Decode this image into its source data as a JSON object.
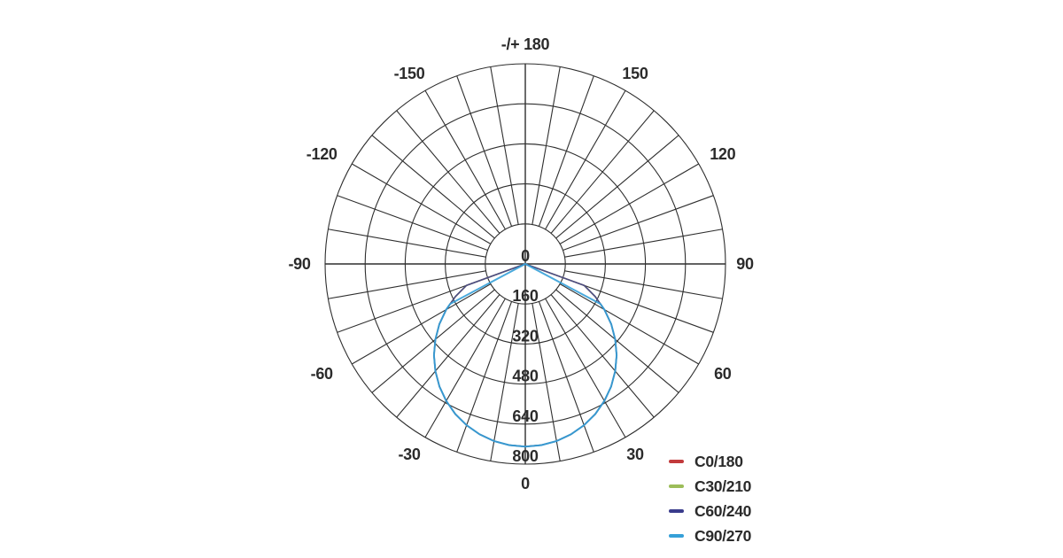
{
  "chart_data": {
    "type": "line",
    "subtype": "polar-photometric",
    "title": "",
    "angle_axis": {
      "unit": "degrees",
      "zero_position": "bottom",
      "minor_spoke_step_deg": 10,
      "labeled_step_deg": 30,
      "ticks": [
        {
          "deg": 0,
          "label": "0"
        },
        {
          "deg": 30,
          "label": "30"
        },
        {
          "deg": 60,
          "label": "60"
        },
        {
          "deg": 90,
          "label": "90"
        },
        {
          "deg": 120,
          "label": "120"
        },
        {
          "deg": 150,
          "label": "150"
        },
        {
          "deg": 180,
          "label": "-/+ 180"
        },
        {
          "deg": -150,
          "label": "-150"
        },
        {
          "deg": -120,
          "label": "-120"
        },
        {
          "deg": -90,
          "label": "-90"
        },
        {
          "deg": -60,
          "label": "-60"
        },
        {
          "deg": -30,
          "label": "-30"
        }
      ]
    },
    "radial_axis": {
      "min": 0,
      "max": 800,
      "ring_step": 160,
      "ticks": [
        {
          "value": 0,
          "label": "0"
        },
        {
          "value": 160,
          "label": "160"
        },
        {
          "value": 320,
          "label": "320"
        },
        {
          "value": 480,
          "label": "480"
        },
        {
          "value": 640,
          "label": "640"
        },
        {
          "value": 800,
          "label": "800"
        }
      ]
    },
    "grid": {
      "visible": true,
      "color": "#2e2e2e",
      "ring_count": 5,
      "spoke_step_deg": 10
    },
    "series": [
      {
        "name": "C0/180",
        "color": "#c23a3c",
        "points": [
          [
            -90,
            0
          ],
          [
            -70,
            250
          ],
          [
            -65,
            308
          ],
          [
            -60,
            365
          ],
          [
            -55,
            419
          ],
          [
            -50,
            469
          ],
          [
            -45,
            516
          ],
          [
            -40,
            559
          ],
          [
            -35,
            598
          ],
          [
            -30,
            632
          ],
          [
            -25,
            662
          ],
          [
            -20,
            686
          ],
          [
            -15,
            705
          ],
          [
            -10,
            719
          ],
          [
            -5,
            727
          ],
          [
            0,
            730
          ],
          [
            5,
            727
          ],
          [
            10,
            719
          ],
          [
            15,
            705
          ],
          [
            20,
            686
          ],
          [
            25,
            662
          ],
          [
            30,
            632
          ],
          [
            35,
            598
          ],
          [
            40,
            559
          ],
          [
            45,
            516
          ],
          [
            50,
            469
          ],
          [
            55,
            419
          ],
          [
            60,
            365
          ],
          [
            65,
            308
          ],
          [
            70,
            250
          ],
          [
            90,
            0
          ]
        ]
      },
      {
        "name": "C30/210",
        "color": "#9cbd59",
        "points": [
          [
            -90,
            0
          ],
          [
            -70,
            250
          ],
          [
            -65,
            308
          ],
          [
            -60,
            365
          ],
          [
            -55,
            419
          ],
          [
            -50,
            469
          ],
          [
            -45,
            516
          ],
          [
            -40,
            559
          ],
          [
            -35,
            598
          ],
          [
            -30,
            632
          ],
          [
            -25,
            662
          ],
          [
            -20,
            686
          ],
          [
            -15,
            705
          ],
          [
            -10,
            719
          ],
          [
            -5,
            727
          ],
          [
            0,
            730
          ],
          [
            5,
            727
          ],
          [
            10,
            719
          ],
          [
            15,
            705
          ],
          [
            20,
            686
          ],
          [
            25,
            662
          ],
          [
            30,
            632
          ],
          [
            35,
            598
          ],
          [
            40,
            559
          ],
          [
            45,
            516
          ],
          [
            50,
            469
          ],
          [
            55,
            419
          ],
          [
            60,
            365
          ],
          [
            65,
            308
          ],
          [
            70,
            250
          ],
          [
            90,
            0
          ]
        ]
      },
      {
        "name": "C60/240",
        "color": "#3a3c8c",
        "points": [
          [
            -90,
            0
          ],
          [
            -70,
            250
          ],
          [
            -65,
            308
          ],
          [
            -60,
            365
          ],
          [
            -55,
            419
          ],
          [
            -50,
            469
          ],
          [
            -45,
            516
          ],
          [
            -40,
            559
          ],
          [
            -35,
            598
          ],
          [
            -30,
            632
          ],
          [
            -25,
            662
          ],
          [
            -20,
            686
          ],
          [
            -15,
            705
          ],
          [
            -10,
            719
          ],
          [
            -5,
            727
          ],
          [
            0,
            730
          ],
          [
            5,
            727
          ],
          [
            10,
            719
          ],
          [
            15,
            705
          ],
          [
            20,
            686
          ],
          [
            25,
            662
          ],
          [
            30,
            632
          ],
          [
            35,
            598
          ],
          [
            40,
            559
          ],
          [
            45,
            516
          ],
          [
            50,
            469
          ],
          [
            55,
            419
          ],
          [
            60,
            365
          ],
          [
            65,
            308
          ],
          [
            70,
            250
          ],
          [
            90,
            0
          ]
        ]
      },
      {
        "name": "C90/270",
        "color": "#35a0d8",
        "points": [
          [
            -90,
            0
          ],
          [
            -62,
            340
          ],
          [
            -60,
            365
          ],
          [
            -55,
            419
          ],
          [
            -50,
            469
          ],
          [
            -45,
            516
          ],
          [
            -40,
            559
          ],
          [
            -35,
            598
          ],
          [
            -30,
            632
          ],
          [
            -25,
            662
          ],
          [
            -20,
            686
          ],
          [
            -15,
            705
          ],
          [
            -10,
            719
          ],
          [
            -5,
            727
          ],
          [
            0,
            730
          ],
          [
            5,
            727
          ],
          [
            10,
            719
          ],
          [
            15,
            705
          ],
          [
            20,
            686
          ],
          [
            25,
            662
          ],
          [
            30,
            632
          ],
          [
            35,
            598
          ],
          [
            40,
            559
          ],
          [
            45,
            516
          ],
          [
            50,
            469
          ],
          [
            55,
            419
          ],
          [
            60,
            365
          ],
          [
            62,
            340
          ],
          [
            90,
            0
          ]
        ]
      }
    ],
    "legend": {
      "position": "bottom-right",
      "items": [
        {
          "label": "C0/180",
          "color": "#c23a3c"
        },
        {
          "label": "C30/210",
          "color": "#9cbd59"
        },
        {
          "label": "C60/240",
          "color": "#3a3c8c"
        },
        {
          "label": "C90/270",
          "color": "#35a0d8"
        }
      ]
    },
    "text_color": "#2b2b2b",
    "background_color": "#ffffff"
  }
}
